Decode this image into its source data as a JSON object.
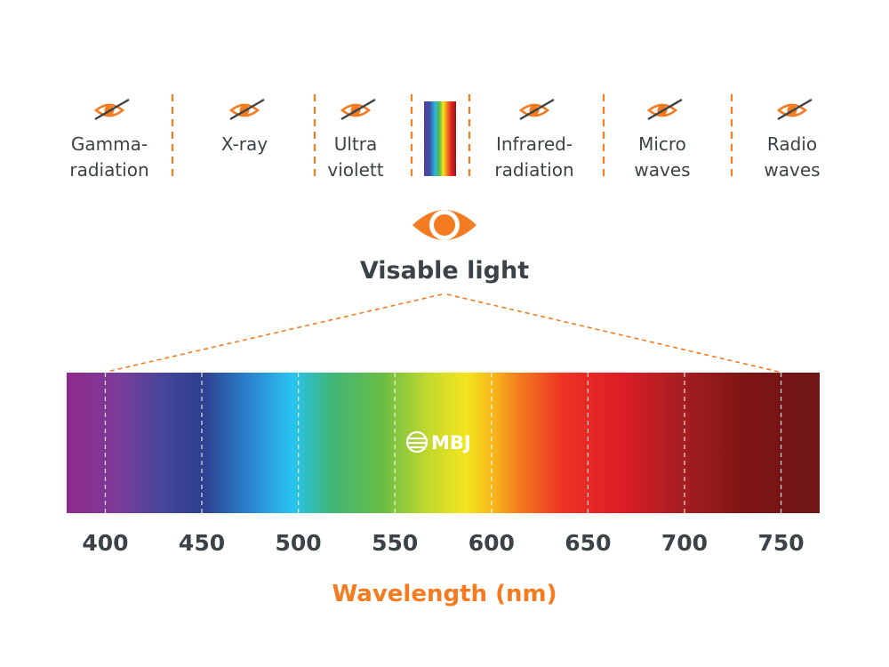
{
  "colors": {
    "accent": "#f47b20",
    "text_dark": "#3b4347",
    "divider_white": "#ffffff"
  },
  "top_categories": [
    {
      "key": "gamma",
      "lines": [
        "Gamma-",
        "radiation"
      ],
      "icon": "eye-crossed-icon"
    },
    {
      "key": "xray",
      "lines": [
        "X-ray"
      ],
      "icon": "eye-crossed-icon"
    },
    {
      "key": "uv",
      "lines": [
        "Ultra",
        "violett"
      ],
      "icon": "eye-crossed-icon"
    },
    {
      "key": "visible",
      "lines": [],
      "icon": "rainbow-swatch"
    },
    {
      "key": "ir",
      "lines": [
        "Infrared-",
        "radiation"
      ],
      "icon": "eye-crossed-icon"
    },
    {
      "key": "micro",
      "lines": [
        "Micro",
        "waves"
      ],
      "icon": "eye-crossed-icon"
    },
    {
      "key": "radio",
      "lines": [
        "Radio",
        "waves"
      ],
      "icon": "eye-crossed-icon"
    }
  ],
  "visible_section": {
    "icon": "eye-icon",
    "title": "Visable light"
  },
  "spectrum": {
    "logo_text": "MBJ",
    "range_nm": [
      380,
      770
    ],
    "ticks": [
      400,
      450,
      500,
      550,
      600,
      650,
      700,
      750
    ],
    "xlabel": "Wavelength (nm)"
  }
}
